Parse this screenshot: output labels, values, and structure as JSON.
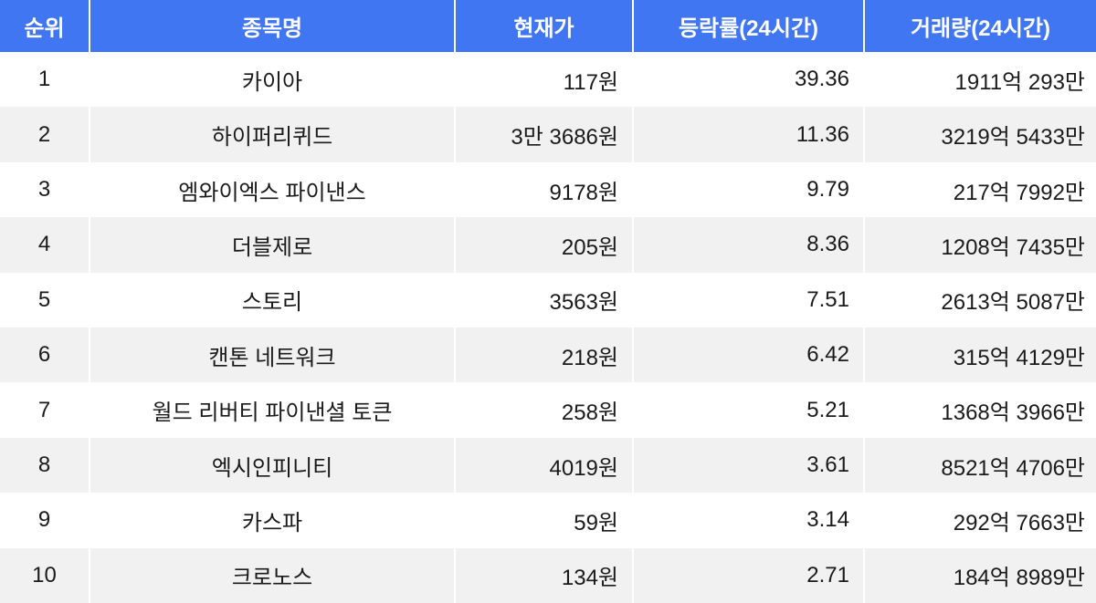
{
  "colors": {
    "header_bg": "#4176F3",
    "header_text": "#ffffff",
    "row_alt_bg": "#F1F1F1",
    "body_text": "#1A1A1A",
    "page_bg": "#ffffff"
  },
  "chart_data": {
    "type": "table",
    "title": "",
    "columns": [
      "순위",
      "종목명",
      "현재가",
      "등락률(24시간)",
      "거래량(24시간)"
    ],
    "rows": [
      [
        "1",
        "카이아",
        "117원",
        "39.36",
        "1911억 293만"
      ],
      [
        "2",
        "하이퍼리퀴드",
        "3만 3686원",
        "11.36",
        "3219억 5433만"
      ],
      [
        "3",
        "엠와이엑스 파이낸스",
        "9178원",
        "9.79",
        "217억 7992만"
      ],
      [
        "4",
        "더블제로",
        "205원",
        "8.36",
        "1208억 7435만"
      ],
      [
        "5",
        "스토리",
        "3563원",
        "7.51",
        "2613억 5087만"
      ],
      [
        "6",
        "캔톤 네트워크",
        "218원",
        "6.42",
        "315억 4129만"
      ],
      [
        "7",
        "월드 리버티 파이낸셜 토큰",
        "258원",
        "5.21",
        "1368억 3966만"
      ],
      [
        "8",
        "엑시인피니티",
        "4019원",
        "3.61",
        "8521억 4706만"
      ],
      [
        "9",
        "카스파",
        "59원",
        "3.14",
        "292억 7663만"
      ],
      [
        "10",
        "크로노스",
        "134원",
        "2.71",
        "184억 8989만"
      ]
    ]
  }
}
